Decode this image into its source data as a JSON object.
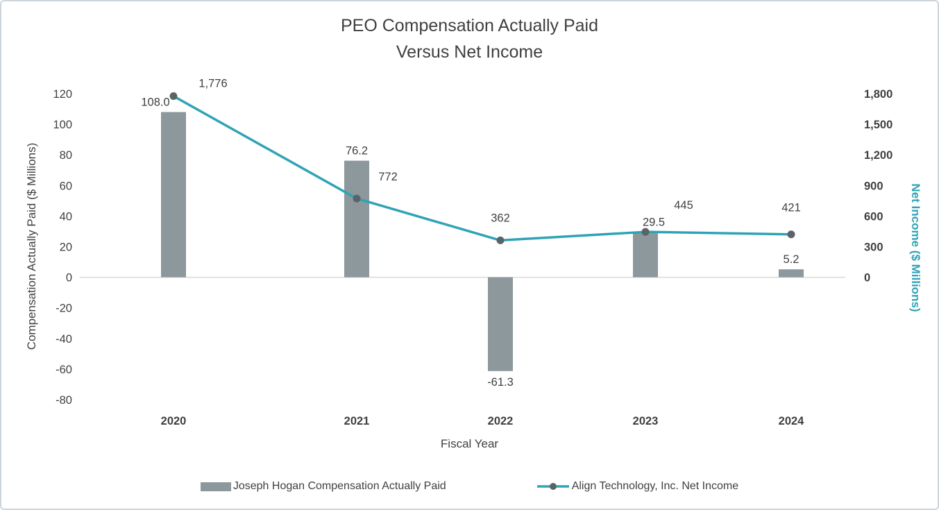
{
  "title": {
    "line1": "PEO Compensation Actually Paid",
    "line2": "Versus Net Income"
  },
  "axes": {
    "left_title": "Compensation Actually Paid ($ Millions)",
    "right_title": "Net Income ($ Millions)",
    "x_title": "Fiscal Year"
  },
  "legend": {
    "bar_label": "Joseph Hogan Compensation Actually Paid",
    "line_label": "Align Technology, Inc. Net Income"
  },
  "chart_data": {
    "type": "bar",
    "subtype": "combo bar + line, dual axis",
    "title": "PEO Compensation Actually Paid Versus Net Income",
    "xlabel": "Fiscal Year",
    "categories": [
      "2020",
      "2021",
      "2022",
      "2023",
      "2024"
    ],
    "series": [
      {
        "name": "Joseph Hogan Compensation Actually Paid",
        "type": "bar",
        "axis": "left",
        "values": [
          108.0,
          76.2,
          -61.3,
          29.5,
          5.2
        ],
        "labels": [
          "108.0",
          "76.2",
          "-61.3",
          "29.5",
          "5.2"
        ]
      },
      {
        "name": "Align Technology, Inc. Net Income",
        "type": "line",
        "axis": "right",
        "values": [
          1776,
          772,
          362,
          445,
          421
        ],
        "labels": [
          "1,776",
          "772",
          "362",
          "445",
          "421"
        ]
      }
    ],
    "y_left": {
      "label": "Compensation Actually Paid ($ Millions)",
      "min": -80,
      "max": 120,
      "ticks": [
        120,
        100,
        80,
        60,
        40,
        20,
        0,
        -20,
        -40,
        -60,
        -80
      ],
      "tick_labels": [
        "120",
        "100",
        "80",
        "60",
        "40",
        "20",
        "0",
        "-20",
        "-40",
        "-60",
        "-80"
      ]
    },
    "y_right": {
      "label": "Net Income ($ Millions)",
      "min_shown": 0,
      "max": 1800,
      "ticks": [
        1800,
        1500,
        1200,
        900,
        600,
        300,
        0
      ],
      "tick_labels": [
        "1,800",
        "1,500",
        "1,200",
        "900",
        "600",
        "300",
        "0"
      ]
    },
    "gridlines": "zero-line only",
    "legend_position": "bottom",
    "colors": {
      "bar": "#8C989C",
      "line": "#2FA3B5",
      "data_label_teal": "#38A9BA",
      "marker": "#5A6466",
      "text": "#3F3F3F",
      "zero_line": "#D9D9D9",
      "right_axis_text": "#2FA3B5"
    }
  }
}
